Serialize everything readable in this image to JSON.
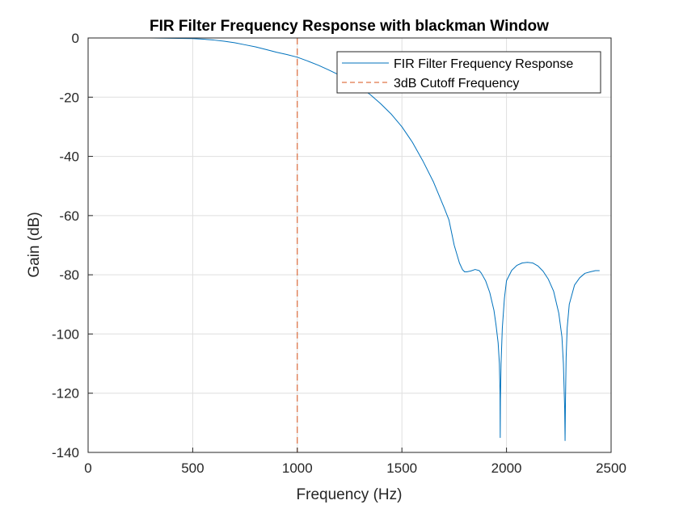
{
  "chart_data": {
    "type": "line",
    "title": "FIR Filter Frequency Response with blackman Window",
    "xlabel": "Frequency (Hz)",
    "ylabel": "Gain (dB)",
    "xlim": [
      0,
      2500
    ],
    "ylim": [
      -140,
      0
    ],
    "xticks": [
      0,
      500,
      1000,
      1500,
      2000,
      2500
    ],
    "yticks": [
      0,
      -20,
      -40,
      -60,
      -80,
      -100,
      -120,
      -140
    ],
    "grid": true,
    "legend_position": "top-right",
    "series": [
      {
        "name": "FIR Filter Frequency Response",
        "style": "solid",
        "color": "#0072BD",
        "x": [
          0,
          100,
          200,
          300,
          400,
          500,
          550,
          600,
          650,
          700,
          750,
          800,
          850,
          900,
          950,
          1000,
          1050,
          1100,
          1150,
          1200,
          1250,
          1300,
          1350,
          1400,
          1450,
          1500,
          1550,
          1600,
          1650,
          1700,
          1725,
          1750,
          1775,
          1790,
          1800,
          1810,
          1830,
          1850,
          1870,
          1880,
          1900,
          1920,
          1940,
          1950,
          1960,
          1966,
          1969,
          1970,
          1971,
          1974,
          1980,
          1990,
          2000,
          2025,
          2050,
          2075,
          2100,
          2125,
          2150,
          2175,
          2200,
          2225,
          2250,
          2265,
          2272,
          2278,
          2280,
          2282,
          2285,
          2290,
          2300,
          2325,
          2350,
          2375,
          2400,
          2425,
          2445
        ],
        "y": [
          0,
          0,
          0,
          0,
          -0.1,
          -0.2,
          -0.4,
          -0.7,
          -1.1,
          -1.6,
          -2.3,
          -3.0,
          -3.9,
          -4.8,
          -5.6,
          -6.5,
          -7.8,
          -9.2,
          -10.8,
          -12.5,
          -14.5,
          -16.6,
          -19.2,
          -22.3,
          -25.8,
          -30.0,
          -35.2,
          -41.5,
          -48.5,
          -57.0,
          -61.5,
          -70.0,
          -76.0,
          -78.3,
          -79.0,
          -79.0,
          -78.7,
          -78.2,
          -78.6,
          -79.5,
          -82.0,
          -86.0,
          -92.0,
          -97.0,
          -103.0,
          -110.0,
          -120.0,
          -135.0,
          -122.0,
          -110.0,
          -98.0,
          -88.0,
          -82.0,
          -78.5,
          -76.8,
          -76.0,
          -75.8,
          -76.0,
          -77.0,
          -78.8,
          -81.5,
          -85.5,
          -93.0,
          -101.0,
          -110.0,
          -125.0,
          -136.0,
          -122.0,
          -108.0,
          -98.0,
          -90.0,
          -83.5,
          -81.0,
          -79.5,
          -79.0,
          -78.6,
          -78.6
        ]
      },
      {
        "name": "3dB Cutoff Frequency",
        "style": "dashed",
        "color": "#D95319",
        "x": [
          1000,
          1000
        ],
        "y": [
          0,
          -140
        ]
      }
    ]
  }
}
